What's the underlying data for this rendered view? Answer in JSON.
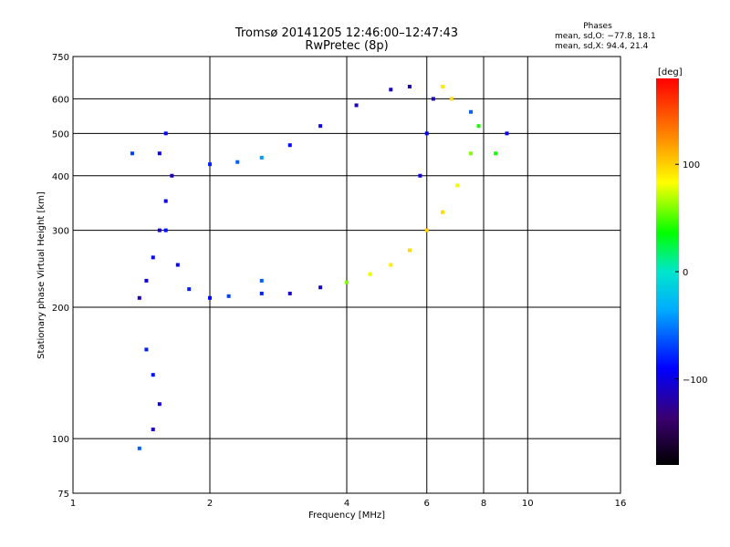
{
  "chart_data": {
    "type": "scatter",
    "title": "Tromsø 20141205 12:46:00–12:47:43",
    "subtitle": "RwPretec (8p)",
    "xlabel": "Frequency [MHz]",
    "ylabel": "Stationary phase Virtual Height [km]",
    "x_scale": "log",
    "y_scale": "log",
    "xlim": [
      1,
      16
    ],
    "ylim": [
      75,
      750
    ],
    "x_ticks": [
      1,
      2,
      4,
      6,
      8,
      10,
      16
    ],
    "x_tick_labels": [
      "1",
      "2",
      "4",
      "6",
      "8",
      "10",
      "16"
    ],
    "y_ticks": [
      75,
      100,
      200,
      300,
      400,
      500,
      600,
      750
    ],
    "y_tick_labels": [
      "75",
      "100",
      "200",
      "300",
      "400",
      "500",
      "600",
      "750"
    ],
    "grid": true,
    "stats": {
      "title": "Phases",
      "line_o": "mean, sd,O: −77.8, 18.1",
      "line_x": "mean, sd,X:  94.4, 21.4"
    },
    "colorbar": {
      "label": "[deg]",
      "min": -180,
      "max": 180,
      "ticks": [
        100,
        0,
        -100
      ],
      "tick_labels": [
        "100",
        "0",
        "−100"
      ],
      "colormap": "rainbow"
    },
    "series": [
      {
        "points": [
          [
            1.4,
            210,
            -110
          ],
          [
            1.45,
            230,
            -100
          ],
          [
            1.5,
            260,
            -95
          ],
          [
            1.55,
            300,
            -105
          ],
          [
            1.6,
            350,
            -100
          ],
          [
            1.65,
            400,
            -110
          ],
          [
            1.55,
            450,
            -100
          ],
          [
            1.6,
            500,
            -95
          ],
          [
            1.45,
            160,
            -80
          ],
          [
            1.5,
            140,
            -85
          ],
          [
            1.55,
            120,
            -100
          ],
          [
            1.5,
            105,
            -110
          ],
          [
            1.6,
            300,
            -85
          ],
          [
            1.7,
            250,
            -90
          ],
          [
            1.8,
            220,
            -80
          ],
          [
            2.0,
            210,
            -90
          ],
          [
            2.2,
            212,
            -70
          ],
          [
            2.6,
            215,
            -80
          ],
          [
            1.35,
            450,
            -70
          ],
          [
            1.4,
            95,
            -60
          ]
        ]
      },
      {
        "points": [
          [
            2.0,
            425,
            -80
          ],
          [
            2.3,
            430,
            -60
          ],
          [
            2.6,
            440,
            -40
          ],
          [
            3.0,
            470,
            -90
          ],
          [
            3.5,
            520,
            -100
          ],
          [
            4.2,
            580,
            -110
          ],
          [
            5.0,
            630,
            -110
          ],
          [
            5.5,
            640,
            -115
          ],
          [
            2.6,
            230,
            -60
          ],
          [
            3.0,
            215,
            -110
          ],
          [
            3.5,
            222,
            -105
          ],
          [
            4.0,
            228,
            60
          ],
          [
            4.5,
            238,
            80
          ],
          [
            5.0,
            250,
            90
          ],
          [
            5.5,
            270,
            95
          ],
          [
            6.0,
            300,
            100
          ],
          [
            6.5,
            330,
            95
          ],
          [
            7.0,
            380,
            80
          ],
          [
            7.5,
            450,
            60
          ],
          [
            7.8,
            520,
            40
          ],
          [
            5.8,
            400,
            -100
          ],
          [
            6.0,
            500,
            -95
          ],
          [
            6.2,
            600,
            -110
          ],
          [
            6.5,
            640,
            90
          ],
          [
            8.5,
            450,
            40
          ],
          [
            9.0,
            500,
            -100
          ],
          [
            7.5,
            560,
            -60
          ],
          [
            6.8,
            600,
            95
          ]
        ]
      }
    ]
  }
}
